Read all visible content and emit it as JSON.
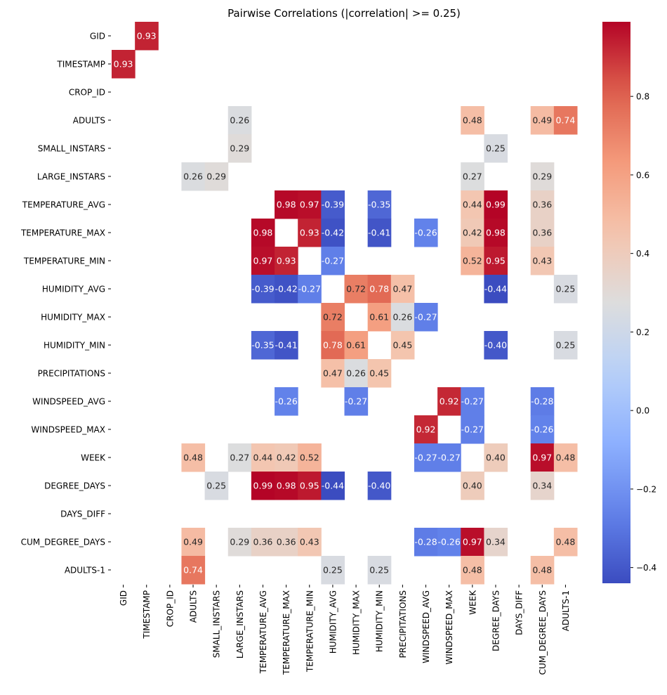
{
  "chart_data": {
    "type": "heatmap",
    "title": "Pairwise Correlations (|correlation| >= 0.25)",
    "xlabel": "",
    "ylabel": "",
    "colormap": "coolwarm",
    "threshold": 0.25,
    "mask_note": "cells with |correlation| < 0.25 and diagonal are blank",
    "variables": [
      "GID",
      "TIMESTAMP",
      "CROP_ID",
      "ADULTS",
      "SMALL_INSTARS",
      "LARGE_INSTARS",
      "TEMPERATURE_AVG",
      "TEMPERATURE_MAX",
      "TEMPERATURE_MIN",
      "HUMIDITY_AVG",
      "HUMIDITY_MAX",
      "HUMIDITY_MIN",
      "PRECIPITATIONS",
      "WINDSPEED_AVG",
      "WINDSPEED_MAX",
      "WEEK",
      "DEGREE_DAYS",
      "DAYS_DIFF",
      "CUM_DEGREE_DAYS",
      "ADULTS-1"
    ],
    "cells": [
      {
        "row": "GID",
        "col": "TIMESTAMP",
        "value": 0.93,
        "label": "0.93"
      },
      {
        "row": "TIMESTAMP",
        "col": "GID",
        "value": 0.93,
        "label": "0.93"
      },
      {
        "row": "ADULTS",
        "col": "LARGE_INSTARS",
        "value": 0.26,
        "label": "0.26"
      },
      {
        "row": "ADULTS",
        "col": "WEEK",
        "value": 0.48,
        "label": "0.48"
      },
      {
        "row": "ADULTS",
        "col": "CUM_DEGREE_DAYS",
        "value": 0.49,
        "label": "0.49"
      },
      {
        "row": "ADULTS",
        "col": "ADULTS-1",
        "value": 0.74,
        "label": "0.74"
      },
      {
        "row": "SMALL_INSTARS",
        "col": "LARGE_INSTARS",
        "value": 0.29,
        "label": "0.29"
      },
      {
        "row": "SMALL_INSTARS",
        "col": "DEGREE_DAYS",
        "value": 0.25,
        "label": "0.25"
      },
      {
        "row": "LARGE_INSTARS",
        "col": "ADULTS",
        "value": 0.26,
        "label": "0.26"
      },
      {
        "row": "LARGE_INSTARS",
        "col": "SMALL_INSTARS",
        "value": 0.29,
        "label": "0.29"
      },
      {
        "row": "LARGE_INSTARS",
        "col": "WEEK",
        "value": 0.27,
        "label": "0.27"
      },
      {
        "row": "LARGE_INSTARS",
        "col": "CUM_DEGREE_DAYS",
        "value": 0.29,
        "label": "0.29"
      },
      {
        "row": "TEMPERATURE_AVG",
        "col": "TEMPERATURE_MAX",
        "value": 0.98,
        "label": "0.98"
      },
      {
        "row": "TEMPERATURE_AVG",
        "col": "TEMPERATURE_MIN",
        "value": 0.97,
        "label": "0.97"
      },
      {
        "row": "TEMPERATURE_AVG",
        "col": "HUMIDITY_AVG",
        "value": -0.39,
        "label": "-0.39"
      },
      {
        "row": "TEMPERATURE_AVG",
        "col": "HUMIDITY_MIN",
        "value": -0.35,
        "label": "-0.35"
      },
      {
        "row": "TEMPERATURE_AVG",
        "col": "WEEK",
        "value": 0.44,
        "label": "0.44"
      },
      {
        "row": "TEMPERATURE_AVG",
        "col": "DEGREE_DAYS",
        "value": 0.99,
        "label": "0.99"
      },
      {
        "row": "TEMPERATURE_AVG",
        "col": "CUM_DEGREE_DAYS",
        "value": 0.36,
        "label": "0.36"
      },
      {
        "row": "TEMPERATURE_MAX",
        "col": "TEMPERATURE_AVG",
        "value": 0.98,
        "label": "0.98"
      },
      {
        "row": "TEMPERATURE_MAX",
        "col": "TEMPERATURE_MIN",
        "value": 0.93,
        "label": "0.93"
      },
      {
        "row": "TEMPERATURE_MAX",
        "col": "HUMIDITY_AVG",
        "value": -0.42,
        "label": "-0.42"
      },
      {
        "row": "TEMPERATURE_MAX",
        "col": "HUMIDITY_MIN",
        "value": -0.41,
        "label": "-0.41"
      },
      {
        "row": "TEMPERATURE_MAX",
        "col": "WINDSPEED_AVG",
        "value": -0.26,
        "label": "-0.26"
      },
      {
        "row": "TEMPERATURE_MAX",
        "col": "WEEK",
        "value": 0.42,
        "label": "0.42"
      },
      {
        "row": "TEMPERATURE_MAX",
        "col": "DEGREE_DAYS",
        "value": 0.98,
        "label": "0.98"
      },
      {
        "row": "TEMPERATURE_MAX",
        "col": "CUM_DEGREE_DAYS",
        "value": 0.36,
        "label": "0.36"
      },
      {
        "row": "TEMPERATURE_MIN",
        "col": "TEMPERATURE_AVG",
        "value": 0.97,
        "label": "0.97"
      },
      {
        "row": "TEMPERATURE_MIN",
        "col": "TEMPERATURE_MAX",
        "value": 0.93,
        "label": "0.93"
      },
      {
        "row": "TEMPERATURE_MIN",
        "col": "HUMIDITY_AVG",
        "value": -0.27,
        "label": "-0.27"
      },
      {
        "row": "TEMPERATURE_MIN",
        "col": "WEEK",
        "value": 0.52,
        "label": "0.52"
      },
      {
        "row": "TEMPERATURE_MIN",
        "col": "DEGREE_DAYS",
        "value": 0.95,
        "label": "0.95"
      },
      {
        "row": "TEMPERATURE_MIN",
        "col": "CUM_DEGREE_DAYS",
        "value": 0.43,
        "label": "0.43"
      },
      {
        "row": "HUMIDITY_AVG",
        "col": "TEMPERATURE_AVG",
        "value": -0.39,
        "label": "-0.39"
      },
      {
        "row": "HUMIDITY_AVG",
        "col": "TEMPERATURE_MAX",
        "value": -0.42,
        "label": "-0.42"
      },
      {
        "row": "HUMIDITY_AVG",
        "col": "TEMPERATURE_MIN",
        "value": -0.27,
        "label": "-0.27"
      },
      {
        "row": "HUMIDITY_AVG",
        "col": "HUMIDITY_MAX",
        "value": 0.72,
        "label": "0.72"
      },
      {
        "row": "HUMIDITY_AVG",
        "col": "HUMIDITY_MIN",
        "value": 0.78,
        "label": "0.78"
      },
      {
        "row": "HUMIDITY_AVG",
        "col": "PRECIPITATIONS",
        "value": 0.47,
        "label": "0.47"
      },
      {
        "row": "HUMIDITY_AVG",
        "col": "DEGREE_DAYS",
        "value": -0.44,
        "label": "-0.44"
      },
      {
        "row": "HUMIDITY_AVG",
        "col": "ADULTS-1",
        "value": 0.25,
        "label": "0.25"
      },
      {
        "row": "HUMIDITY_MAX",
        "col": "HUMIDITY_AVG",
        "value": 0.72,
        "label": "0.72"
      },
      {
        "row": "HUMIDITY_MAX",
        "col": "HUMIDITY_MIN",
        "value": 0.61,
        "label": "0.61"
      },
      {
        "row": "HUMIDITY_MAX",
        "col": "PRECIPITATIONS",
        "value": 0.26,
        "label": "0.26"
      },
      {
        "row": "HUMIDITY_MAX",
        "col": "WINDSPEED_AVG",
        "value": -0.27,
        "label": "-0.27"
      },
      {
        "row": "HUMIDITY_MIN",
        "col": "TEMPERATURE_AVG",
        "value": -0.35,
        "label": "-0.35"
      },
      {
        "row": "HUMIDITY_MIN",
        "col": "TEMPERATURE_MAX",
        "value": -0.41,
        "label": "-0.41"
      },
      {
        "row": "HUMIDITY_MIN",
        "col": "HUMIDITY_AVG",
        "value": 0.78,
        "label": "0.78"
      },
      {
        "row": "HUMIDITY_MIN",
        "col": "HUMIDITY_MAX",
        "value": 0.61,
        "label": "0.61"
      },
      {
        "row": "HUMIDITY_MIN",
        "col": "PRECIPITATIONS",
        "value": 0.45,
        "label": "0.45"
      },
      {
        "row": "HUMIDITY_MIN",
        "col": "DEGREE_DAYS",
        "value": -0.4,
        "label": "-0.40"
      },
      {
        "row": "HUMIDITY_MIN",
        "col": "ADULTS-1",
        "value": 0.25,
        "label": "0.25"
      },
      {
        "row": "PRECIPITATIONS",
        "col": "HUMIDITY_AVG",
        "value": 0.47,
        "label": "0.47"
      },
      {
        "row": "PRECIPITATIONS",
        "col": "HUMIDITY_MAX",
        "value": 0.26,
        "label": "0.26"
      },
      {
        "row": "PRECIPITATIONS",
        "col": "HUMIDITY_MIN",
        "value": 0.45,
        "label": "0.45"
      },
      {
        "row": "WINDSPEED_AVG",
        "col": "TEMPERATURE_MAX",
        "value": -0.26,
        "label": "-0.26"
      },
      {
        "row": "WINDSPEED_AVG",
        "col": "HUMIDITY_MAX",
        "value": -0.27,
        "label": "-0.27"
      },
      {
        "row": "WINDSPEED_AVG",
        "col": "WINDSPEED_MAX",
        "value": 0.92,
        "label": "0.92"
      },
      {
        "row": "WINDSPEED_AVG",
        "col": "WEEK",
        "value": -0.27,
        "label": "-0.27"
      },
      {
        "row": "WINDSPEED_AVG",
        "col": "CUM_DEGREE_DAYS",
        "value": -0.28,
        "label": "-0.28"
      },
      {
        "row": "WINDSPEED_MAX",
        "col": "WINDSPEED_AVG",
        "value": 0.92,
        "label": "0.92"
      },
      {
        "row": "WINDSPEED_MAX",
        "col": "WEEK",
        "value": -0.27,
        "label": "-0.27"
      },
      {
        "row": "WINDSPEED_MAX",
        "col": "CUM_DEGREE_DAYS",
        "value": -0.26,
        "label": "-0.26"
      },
      {
        "row": "WEEK",
        "col": "ADULTS",
        "value": 0.48,
        "label": "0.48"
      },
      {
        "row": "WEEK",
        "col": "LARGE_INSTARS",
        "value": 0.27,
        "label": "0.27"
      },
      {
        "row": "WEEK",
        "col": "TEMPERATURE_AVG",
        "value": 0.44,
        "label": "0.44"
      },
      {
        "row": "WEEK",
        "col": "TEMPERATURE_MAX",
        "value": 0.42,
        "label": "0.42"
      },
      {
        "row": "WEEK",
        "col": "TEMPERATURE_MIN",
        "value": 0.52,
        "label": "0.52"
      },
      {
        "row": "WEEK",
        "col": "WINDSPEED_AVG",
        "value": -0.27,
        "label": "-0.27"
      },
      {
        "row": "WEEK",
        "col": "WINDSPEED_MAX",
        "value": -0.27,
        "label": "-0.27"
      },
      {
        "row": "WEEK",
        "col": "DEGREE_DAYS",
        "value": 0.4,
        "label": "0.40"
      },
      {
        "row": "WEEK",
        "col": "CUM_DEGREE_DAYS",
        "value": 0.97,
        "label": "0.97"
      },
      {
        "row": "WEEK",
        "col": "ADULTS-1",
        "value": 0.48,
        "label": "0.48"
      },
      {
        "row": "DEGREE_DAYS",
        "col": "SMALL_INSTARS",
        "value": 0.25,
        "label": "0.25"
      },
      {
        "row": "DEGREE_DAYS",
        "col": "TEMPERATURE_AVG",
        "value": 0.99,
        "label": "0.99"
      },
      {
        "row": "DEGREE_DAYS",
        "col": "TEMPERATURE_MAX",
        "value": 0.98,
        "label": "0.98"
      },
      {
        "row": "DEGREE_DAYS",
        "col": "TEMPERATURE_MIN",
        "value": 0.95,
        "label": "0.95"
      },
      {
        "row": "DEGREE_DAYS",
        "col": "HUMIDITY_AVG",
        "value": -0.44,
        "label": "-0.44"
      },
      {
        "row": "DEGREE_DAYS",
        "col": "HUMIDITY_MIN",
        "value": -0.4,
        "label": "-0.40"
      },
      {
        "row": "DEGREE_DAYS",
        "col": "WEEK",
        "value": 0.4,
        "label": "0.40"
      },
      {
        "row": "DEGREE_DAYS",
        "col": "CUM_DEGREE_DAYS",
        "value": 0.34,
        "label": "0.34"
      },
      {
        "row": "CUM_DEGREE_DAYS",
        "col": "ADULTS",
        "value": 0.49,
        "label": "0.49"
      },
      {
        "row": "CUM_DEGREE_DAYS",
        "col": "LARGE_INSTARS",
        "value": 0.29,
        "label": "0.29"
      },
      {
        "row": "CUM_DEGREE_DAYS",
        "col": "TEMPERATURE_AVG",
        "value": 0.36,
        "label": "0.36"
      },
      {
        "row": "CUM_DEGREE_DAYS",
        "col": "TEMPERATURE_MAX",
        "value": 0.36,
        "label": "0.36"
      },
      {
        "row": "CUM_DEGREE_DAYS",
        "col": "TEMPERATURE_MIN",
        "value": 0.43,
        "label": "0.43"
      },
      {
        "row": "CUM_DEGREE_DAYS",
        "col": "WINDSPEED_AVG",
        "value": -0.28,
        "label": "-0.28"
      },
      {
        "row": "CUM_DEGREE_DAYS",
        "col": "WINDSPEED_MAX",
        "value": -0.26,
        "label": "-0.26"
      },
      {
        "row": "CUM_DEGREE_DAYS",
        "col": "WEEK",
        "value": 0.97,
        "label": "0.97"
      },
      {
        "row": "CUM_DEGREE_DAYS",
        "col": "DEGREE_DAYS",
        "value": 0.34,
        "label": "0.34"
      },
      {
        "row": "CUM_DEGREE_DAYS",
        "col": "ADULTS-1",
        "value": 0.48,
        "label": "0.48"
      },
      {
        "row": "ADULTS-1",
        "col": "ADULTS",
        "value": 0.74,
        "label": "0.74"
      },
      {
        "row": "ADULTS-1",
        "col": "HUMIDITY_AVG",
        "value": 0.25,
        "label": "0.25"
      },
      {
        "row": "ADULTS-1",
        "col": "HUMIDITY_MIN",
        "value": 0.25,
        "label": "0.25"
      },
      {
        "row": "ADULTS-1",
        "col": "WEEK",
        "value": 0.48,
        "label": "0.48"
      },
      {
        "row": "ADULTS-1",
        "col": "CUM_DEGREE_DAYS",
        "value": 0.48,
        "label": "0.48"
      }
    ],
    "colorbar": {
      "vmin": -0.44,
      "vmax": 0.99,
      "ticks": [
        -0.4,
        -0.2,
        0.0,
        0.2,
        0.4,
        0.6,
        0.8
      ],
      "tick_labels": [
        "−0.4",
        "−0.2",
        "0.0",
        "0.2",
        "0.4",
        "0.6",
        "0.8"
      ],
      "placement": "right"
    },
    "grid": false,
    "legend": "colorbar-right"
  }
}
